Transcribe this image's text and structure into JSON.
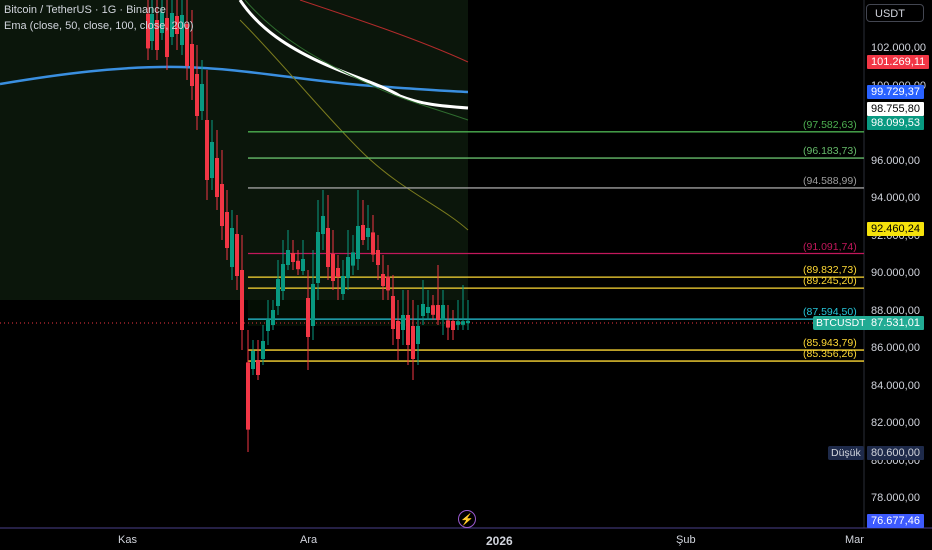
{
  "header": {
    "symbol_line": "Bitcoin / TetherUS · 1G · Binance",
    "indicator_line": "Ema (close, 50, close, 100, close, 200)"
  },
  "currency": "USDT",
  "price_axis": {
    "ticks": [
      "102.000,00",
      "100.000,00",
      "98.000,00",
      "96.000,00",
      "94.000,00",
      "92.000,00",
      "90.000,00",
      "88.000,00",
      "86.000,00",
      "84.000,00",
      "82.000,00",
      "80.000,00",
      "78.000,00"
    ]
  },
  "price_tags": [
    {
      "key": "ema_red",
      "text": "101.269,11",
      "bg": "#f23645",
      "fg": "#ffffff"
    },
    {
      "key": "ema_blue",
      "text": "99.729,37",
      "bg": "#2962ff",
      "fg": "#ffffff"
    },
    {
      "key": "ema_white",
      "text": "98.755,80",
      "bg": "#ffffff",
      "fg": "#000000"
    },
    {
      "key": "ema_green",
      "text": "98.099,53",
      "bg": "#089981",
      "fg": "#ffffff"
    },
    {
      "key": "yellow_level",
      "text": "92.460,24",
      "bg": "#f5e20c",
      "fg": "#000000"
    },
    {
      "key": "last_price",
      "text": "87.531,01",
      "bg": "#22ab94",
      "fg": "#ffffff"
    },
    {
      "key": "low_price",
      "text": "80.600,00",
      "bg": "#1e2a4a",
      "fg": "#d1d4dc"
    },
    {
      "key": "bottom_price",
      "text": "76.677,46",
      "bg": "#3d5afe",
      "fg": "#ffffff"
    }
  ],
  "symbol_tag": "BTCUSDT",
  "low_tag": "Düşük",
  "horizontal_levels": [
    {
      "label": "(97.582,63)",
      "color": "#4caf50",
      "price": 97582.63
    },
    {
      "label": "(96.183,73)",
      "color": "#66bb6a",
      "price": 96183.73
    },
    {
      "label": "(94.588,99)",
      "color": "#9e9e9e",
      "price": 94588.99
    },
    {
      "label": "(91.091,74)",
      "color": "#c2185b",
      "price": 91091.74
    },
    {
      "label": "(89.832,73)",
      "color": "#fdd835",
      "price": 89832.73
    },
    {
      "label": "(89.245,20)",
      "color": "#fdd835",
      "price": 89245.2
    },
    {
      "label": "(87.594,50)",
      "color": "#26c6da",
      "price": 87594.5
    },
    {
      "label": "(85.943,79)",
      "color": "#fdd835",
      "price": 85943.79
    },
    {
      "label": "(85.356,26)",
      "color": "#fdd835",
      "price": 85356.26
    }
  ],
  "time_axis": {
    "labels": [
      {
        "text": "Kas",
        "bold": false
      },
      {
        "text": "Ara",
        "bold": false
      },
      {
        "text": "2026",
        "bold": true
      },
      {
        "text": "Şub",
        "bold": false
      },
      {
        "text": "Mar",
        "bold": false
      }
    ]
  },
  "colors": {
    "up": "#089981",
    "down": "#f23645",
    "background": "#000000",
    "ema50": "#ffffff",
    "ema100": "#2962ff",
    "ema200": "#f23645"
  }
}
